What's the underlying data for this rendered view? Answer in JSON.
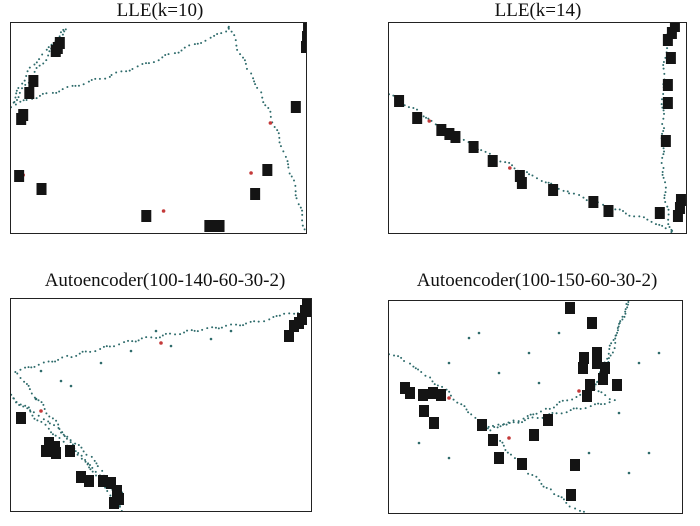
{
  "colors": {
    "frame": "#222222",
    "trace": "#2e6b6b",
    "marker": "#141414",
    "accent": "#c43a3a"
  },
  "chart_data": [
    {
      "type": "scatter",
      "title": "LLE(k=10)",
      "xlim": [
        0,
        290
      ],
      "ylim": [
        0,
        210
      ],
      "trace_points": [
        [
          0,
          127
        ],
        [
          10,
          150
        ],
        [
          22,
          168
        ],
        [
          35,
          182
        ],
        [
          50,
          200
        ],
        [
          55,
          204
        ],
        [
          0,
          127
        ],
        [
          20,
          135
        ],
        [
          40,
          140
        ],
        [
          60,
          146
        ],
        [
          80,
          152
        ],
        [
          100,
          158
        ],
        [
          120,
          165
        ],
        [
          140,
          172
        ],
        [
          160,
          180
        ],
        [
          180,
          188
        ],
        [
          200,
          196
        ],
        [
          215,
          205
        ],
        [
          215,
          205
        ],
        [
          225,
          180
        ],
        [
          235,
          160
        ],
        [
          245,
          140
        ],
        [
          255,
          120
        ],
        [
          265,
          90
        ],
        [
          275,
          60
        ],
        [
          283,
          30
        ],
        [
          290,
          0
        ]
      ],
      "markers": [
        [
          48,
          190
        ],
        [
          46,
          185
        ],
        [
          44,
          182
        ],
        [
          22,
          152
        ],
        [
          18,
          140
        ],
        [
          12,
          118
        ],
        [
          10,
          114
        ],
        [
          8,
          57
        ],
        [
          30,
          44
        ],
        [
          133,
          17
        ],
        [
          195,
          7
        ],
        [
          199,
          7
        ],
        [
          205,
          7
        ],
        [
          240,
          39
        ],
        [
          252,
          63
        ],
        [
          280,
          126
        ],
        [
          290,
          186
        ],
        [
          291,
          196
        ],
        [
          292,
          205
        ]
      ],
      "accents": [
        [
          12,
          58
        ],
        [
          150,
          22
        ],
        [
          236,
          60
        ],
        [
          255,
          110
        ]
      ]
    },
    {
      "type": "scatter",
      "title": "LLE(k=14)",
      "xlim": [
        0,
        295
      ],
      "ylim": [
        0,
        210
      ],
      "trace_points": [
        [
          0,
          140
        ],
        [
          30,
          120
        ],
        [
          60,
          100
        ],
        [
          100,
          78
        ],
        [
          140,
          58
        ],
        [
          180,
          40
        ],
        [
          220,
          25
        ],
        [
          260,
          12
        ],
        [
          280,
          2
        ],
        [
          280,
          2
        ],
        [
          275,
          30
        ],
        [
          272,
          70
        ],
        [
          272,
          110
        ],
        [
          272,
          150
        ],
        [
          275,
          185
        ],
        [
          280,
          208
        ]
      ],
      "markers": [
        [
          10,
          132
        ],
        [
          28,
          115
        ],
        [
          52,
          103
        ],
        [
          60,
          99
        ],
        [
          66,
          96
        ],
        [
          84,
          86
        ],
        [
          103,
          72
        ],
        [
          130,
          57
        ],
        [
          132,
          50
        ],
        [
          163,
          43
        ],
        [
          203,
          31
        ],
        [
          218,
          22
        ],
        [
          269,
          20
        ],
        [
          287,
          17
        ],
        [
          289,
          25
        ],
        [
          290,
          33
        ],
        [
          275,
          92
        ],
        [
          277,
          130
        ],
        [
          277,
          148
        ],
        [
          280,
          175
        ],
        [
          277,
          193
        ],
        [
          281,
          200
        ],
        [
          284,
          207
        ]
      ],
      "accents": [
        [
          40,
          112
        ],
        [
          120,
          65
        ],
        [
          200,
          33
        ],
        [
          272,
          95
        ]
      ]
    },
    {
      "type": "scatter",
      "title": "Autoencoder(100-140-60-30-2)",
      "xlim": [
        0,
        300
      ],
      "ylim": [
        0,
        212
      ],
      "trace_points": [
        [
          100,
          0
        ],
        [
          106,
          10
        ],
        [
          110,
          18
        ],
        [
          0,
          115
        ],
        [
          20,
          100
        ],
        [
          40,
          88
        ],
        [
          60,
          70
        ],
        [
          80,
          55
        ],
        [
          90,
          40
        ],
        [
          100,
          25
        ],
        [
          108,
          10
        ],
        [
          112,
          0
        ],
        [
          5,
          140
        ],
        [
          60,
          155
        ],
        [
          120,
          170
        ],
        [
          180,
          180
        ],
        [
          240,
          188
        ],
        [
          270,
          195
        ],
        [
          290,
          200
        ]
      ],
      "markers": [
        [
          103,
          8
        ],
        [
          108,
          12
        ],
        [
          106,
          20
        ],
        [
          100,
          28
        ],
        [
          92,
          30
        ],
        [
          78,
          30
        ],
        [
          70,
          34
        ],
        [
          45,
          58
        ],
        [
          38,
          68
        ],
        [
          35,
          60
        ],
        [
          44,
          64
        ],
        [
          59,
          60
        ],
        [
          10,
          93
        ],
        [
          278,
          175
        ],
        [
          283,
          185
        ],
        [
          288,
          188
        ],
        [
          291,
          192
        ],
        [
          294,
          200
        ],
        [
          296,
          208
        ],
        [
          297,
          200
        ]
      ],
      "accents": [
        [
          30,
          100
        ],
        [
          150,
          168
        ]
      ],
      "scatter_points": [
        [
          25,
          112
        ],
        [
          50,
          130
        ],
        [
          90,
          148
        ],
        [
          120,
          160
        ],
        [
          145,
          180
        ],
        [
          30,
          140
        ],
        [
          60,
          125
        ],
        [
          200,
          172
        ],
        [
          220,
          180
        ],
        [
          160,
          165
        ]
      ]
    },
    {
      "type": "scatter",
      "title": "Autoencoder(100-150-60-30-2)",
      "xlim": [
        0,
        293
      ],
      "ylim": [
        0,
        212
      ],
      "trace_points": [
        [
          0,
          160
        ],
        [
          20,
          150
        ],
        [
          40,
          135
        ],
        [
          60,
          120
        ],
        [
          80,
          100
        ],
        [
          100,
          85
        ],
        [
          130,
          93
        ],
        [
          160,
          105
        ],
        [
          190,
          118
        ],
        [
          205,
          125
        ],
        [
          220,
          150
        ],
        [
          230,
          185
        ],
        [
          240,
          212
        ],
        [
          205,
          125
        ],
        [
          215,
          118
        ],
        [
          225,
          112
        ],
        [
          100,
          85
        ],
        [
          120,
          60
        ],
        [
          140,
          40
        ],
        [
          165,
          20
        ],
        [
          185,
          5
        ],
        [
          200,
          0
        ]
      ],
      "markers": [
        [
          182,
          18
        ],
        [
          186,
          48
        ],
        [
          110,
          55
        ],
        [
          133,
          49
        ],
        [
          104,
          73
        ],
        [
          93,
          88
        ],
        [
          145,
          78
        ],
        [
          159,
          93
        ],
        [
          45,
          90
        ],
        [
          35,
          102
        ],
        [
          34,
          118
        ],
        [
          16,
          125
        ],
        [
          21,
          120
        ],
        [
          44,
          120
        ],
        [
          52,
          118
        ],
        [
          198,
          117
        ],
        [
          201,
          128
        ],
        [
          214,
          134
        ],
        [
          228,
          128
        ],
        [
          216,
          145
        ],
        [
          208,
          150
        ],
        [
          208,
          160
        ],
        [
          195,
          155
        ],
        [
          194,
          145
        ],
        [
          203,
          190
        ],
        [
          181,
          205
        ]
      ],
      "accents": [
        [
          60,
          115
        ],
        [
          190,
          122
        ],
        [
          120,
          75
        ]
      ],
      "scatter_points": [
        [
          80,
          175
        ],
        [
          140,
          160
        ],
        [
          250,
          150
        ],
        [
          270,
          160
        ],
        [
          230,
          100
        ],
        [
          90,
          180
        ],
        [
          60,
          150
        ],
        [
          170,
          180
        ],
        [
          110,
          140
        ],
        [
          240,
          40
        ],
        [
          260,
          60
        ],
        [
          30,
          70
        ],
        [
          60,
          55
        ],
        [
          150,
          130
        ],
        [
          200,
          60
        ]
      ]
    }
  ]
}
